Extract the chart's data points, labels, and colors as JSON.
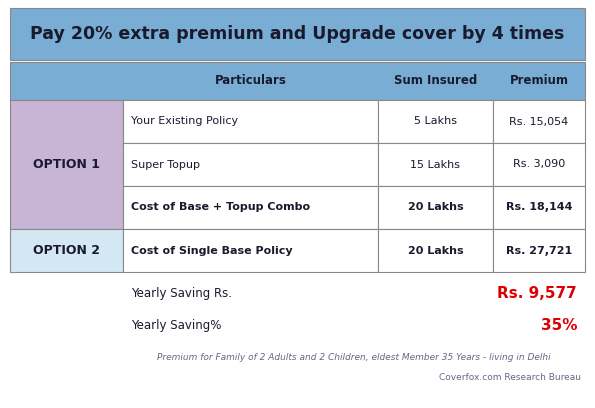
{
  "title": "Pay 20% extra premium and Upgrade cover by 4 times",
  "title_bg": "#7aadd4",
  "title_color": "#1a1a2e",
  "title_fontsize": 12.5,
  "fig_bg": "#ffffff",
  "header_bg": "#7aadd4",
  "header_color": "#1a1a2e",
  "option1_bg": "#c8b4d4",
  "option2_bg": "#d4e8f4",
  "cell_bg": "#ffffff",
  "border_color": "#888888",
  "col_headers": [
    "Particulars",
    "Sum Insured",
    "Premium"
  ],
  "option1_label": "OPTION 1",
  "option2_label": "OPTION 2",
  "rows_option1": [
    [
      "Your Existing Policy",
      "5 Lakhs",
      "Rs. 15,054"
    ],
    [
      "Super Topup",
      "15 Lakhs",
      "Rs. 3,090"
    ],
    [
      "Cost of Base + Topup Combo",
      "20 Lakhs",
      "Rs. 18,144"
    ]
  ],
  "rows_option2": [
    [
      "Cost of Single Base Policy",
      "20 Lakhs",
      "Rs. 27,721"
    ]
  ],
  "yearly_saving_label": "Yearly Saving Rs.",
  "yearly_saving_value": "Rs. 9,577",
  "yearly_saving_pct_label": "Yearly Saving%",
  "yearly_saving_pct_value": "35%",
  "saving_color": "#dd0000",
  "footer_text": "Premium for Family of 2 Adults and 2 Children, eldest Member 35 Years - living in Delhi",
  "footer_source": "Coverfox.com Research Bureau",
  "footer_color": "#666688",
  "lw": 0.8
}
